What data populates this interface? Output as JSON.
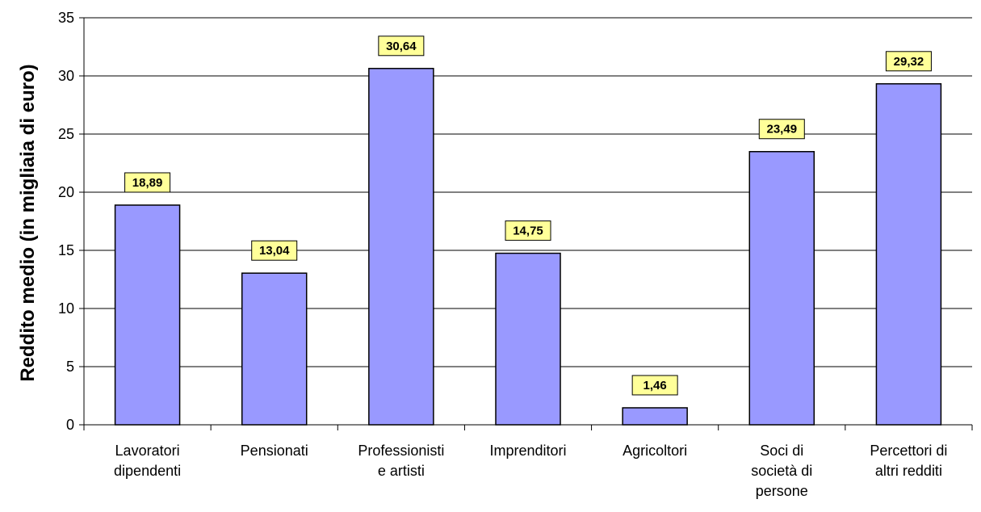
{
  "chart_data": {
    "type": "bar",
    "title": "",
    "xlabel": "",
    "ylabel": "Reddito medio (in migliaia di euro)",
    "ylim": [
      0,
      35
    ],
    "yticks": [
      0,
      5,
      10,
      15,
      20,
      25,
      30,
      35
    ],
    "grid": true,
    "legend": "none",
    "bar_color": "#9999ff",
    "label_box_color": "#ffff99",
    "categories": [
      [
        "Lavoratori",
        "dipendenti"
      ],
      [
        "Pensionati"
      ],
      [
        "Professionisti",
        "e artisti"
      ],
      [
        "Imprenditori"
      ],
      [
        "Agricoltori"
      ],
      [
        "Soci di",
        "società di",
        "persone"
      ],
      [
        "Percettori di",
        "altri redditi"
      ]
    ],
    "values": [
      18.89,
      13.04,
      30.64,
      14.75,
      1.46,
      23.49,
      29.32
    ],
    "data_labels": [
      "18,89",
      "13,04",
      "30,64",
      "14,75",
      "1,46",
      "23,49",
      "29,32"
    ]
  }
}
